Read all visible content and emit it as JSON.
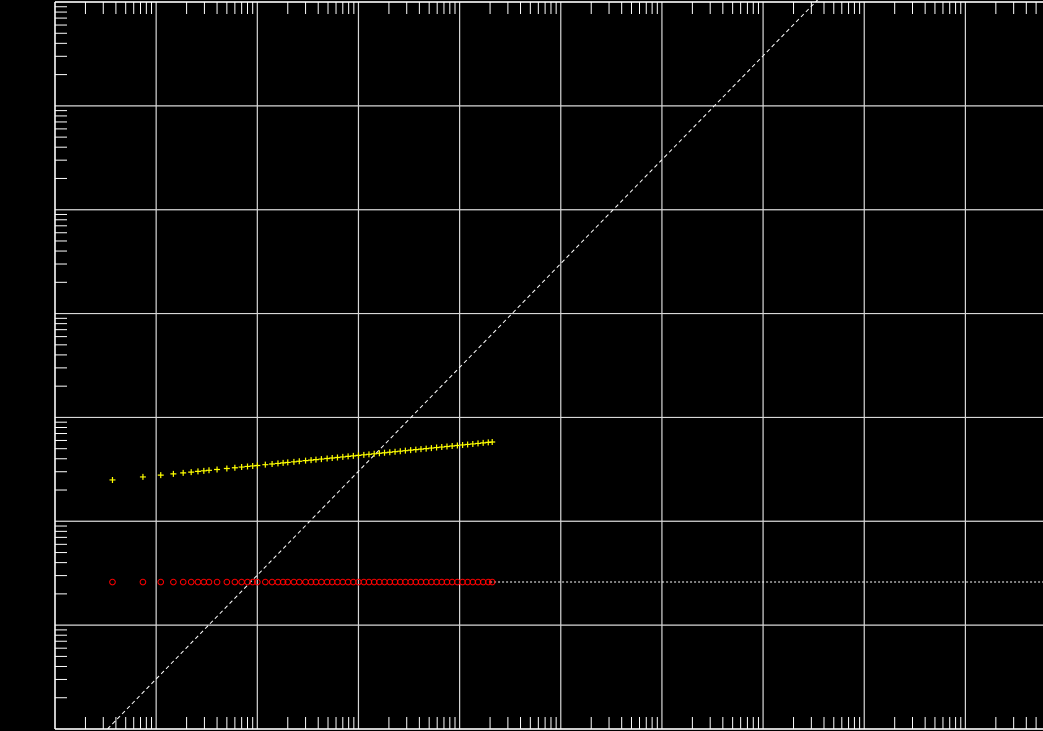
{
  "chart_data": {
    "type": "scatter",
    "title": "",
    "xlabel": "",
    "ylabel": "",
    "x_scale": "log",
    "y_scale": "log",
    "xlim": [
      1,
      20000000000
    ],
    "ylim": [
      1,
      10000000
    ],
    "grid": true,
    "legend": "none",
    "tick_labels_visible": false,
    "reference_lines": [
      {
        "name": "identity",
        "style": "dashed",
        "color": "#ffffff",
        "from": [
          3.3,
          1
        ],
        "to": [
          20000000000,
          6060606060
        ]
      },
      {
        "name": "constant",
        "style": "dotted",
        "color": "#ffffff",
        "y": 26,
        "from_x": 20000,
        "to_x": 20000000000
      }
    ],
    "series": [
      {
        "marker": "plus",
        "color": "#ffff00",
        "trend": {
          "x_start": 3.7,
          "y_start": 250,
          "x_end": 21000,
          "y_end": 580
        },
        "x": [
          3.7,
          7.4,
          11.1,
          14.8,
          18.5,
          22.2,
          25.9,
          29.6,
          33.3,
          40,
          50,
          60,
          70,
          80,
          90,
          100,
          120,
          140,
          160,
          180,
          200,
          230,
          260,
          300,
          340,
          380,
          430,
          490,
          550,
          620,
          700,
          790,
          890,
          1000,
          1130,
          1270,
          1430,
          1610,
          1810,
          2040,
          2300,
          2590,
          2910,
          3280,
          3690,
          4150,
          4670,
          5260,
          5920,
          6660,
          7500,
          8440,
          9500,
          10700,
          12000,
          13500,
          15200,
          17100,
          19200,
          21000
        ]
      },
      {
        "marker": "circle",
        "color": "#ff0000",
        "y": 26,
        "x": [
          3.7,
          7.4,
          11.1,
          14.8,
          18.5,
          22.2,
          25.9,
          29.6,
          33.3,
          40,
          50,
          60,
          70,
          80,
          90,
          100,
          120,
          140,
          160,
          180,
          200,
          230,
          260,
          300,
          340,
          380,
          430,
          490,
          550,
          620,
          700,
          790,
          890,
          1000,
          1130,
          1270,
          1430,
          1610,
          1810,
          2040,
          2300,
          2590,
          2910,
          3280,
          3690,
          4150,
          4670,
          5260,
          5920,
          6660,
          7500,
          8440,
          9500,
          10700,
          12000,
          13500,
          15200,
          17100,
          19200,
          21000
        ]
      }
    ]
  }
}
